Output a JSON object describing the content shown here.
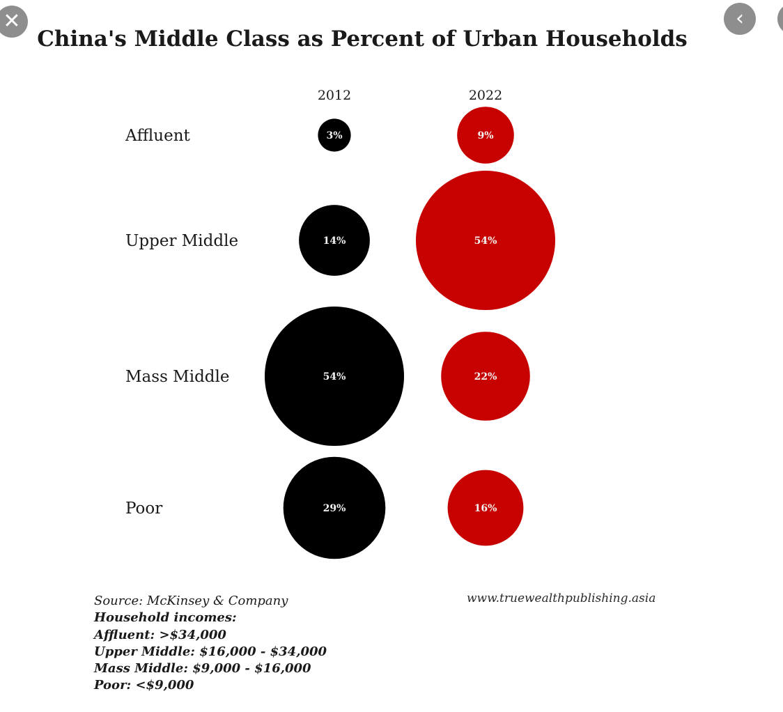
{
  "controls": {
    "close_icon": "close-icon",
    "close_glyph": "✕",
    "back_icon": "chevron-left-icon",
    "back_glyph": "‹"
  },
  "colors": {
    "series_2012": "#000000",
    "series_2022": "#c70000",
    "bubble_text": "#f2f2f2",
    "label_text": "#1a1a1a"
  },
  "chart_data": {
    "type": "bubble",
    "title": "China's Middle Class as Percent of Urban Households",
    "columns": [
      "2012",
      "2022"
    ],
    "categories": [
      "Affluent",
      "Upper Middle",
      "Mass Middle",
      "Poor"
    ],
    "series": [
      {
        "name": "2012",
        "values": [
          3,
          14,
          54,
          29
        ],
        "labels": [
          "3%",
          "14%",
          "54%",
          "29%"
        ]
      },
      {
        "name": "2022",
        "values": [
          9,
          54,
          22,
          16
        ],
        "labels": [
          "9%",
          "54%",
          "22%",
          "16%"
        ]
      }
    ]
  },
  "footer": {
    "source": "Source: McKinsey & Company",
    "income_header": "Household incomes:",
    "incomes": [
      "Affluent: >$34,000",
      "Upper Middle: $16,000 - $34,000",
      "Mass Middle: $9,000 - $16,000",
      "Poor: <$9,000"
    ],
    "website": "www.truewealthpublishing.asia"
  }
}
